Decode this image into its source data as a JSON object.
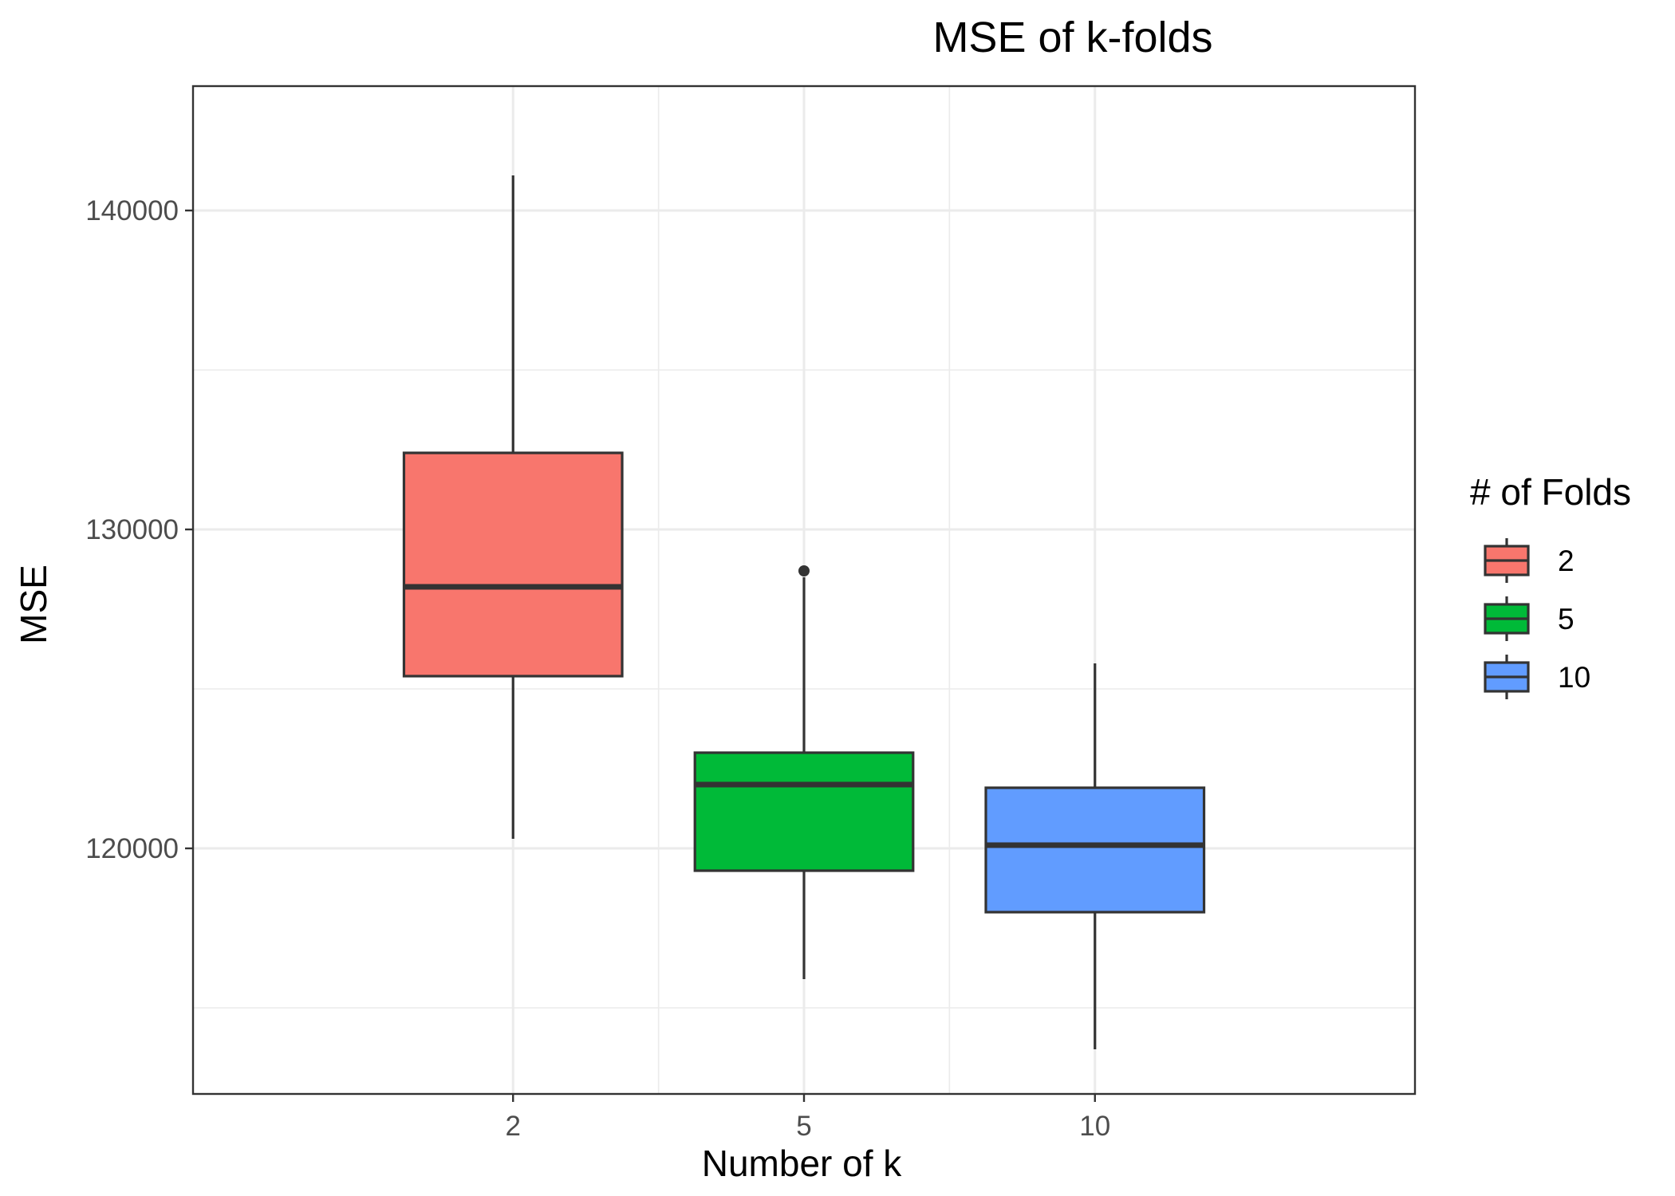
{
  "chart_data": {
    "type": "boxplot",
    "title": "MSE of k-folds",
    "xlabel": "Number of k",
    "ylabel": "MSE",
    "categories": [
      "2",
      "5",
      "10"
    ],
    "ylim": [
      112300,
      143900
    ],
    "y_ticks": [
      120000,
      130000,
      140000
    ],
    "y_tick_labels": [
      "120000",
      "130000",
      "140000"
    ],
    "y_minor_ticks": [
      115000,
      125000,
      135000
    ],
    "grid": true,
    "boxes": [
      {
        "category": "2",
        "whisker_low": 120300,
        "q1": 125400,
        "median": 128200,
        "q3": 132400,
        "whisker_high": 141100,
        "outliers": [],
        "color": "#F8766D"
      },
      {
        "category": "5",
        "whisker_low": 115900,
        "q1": 119300,
        "median": 122000,
        "q3": 123000,
        "whisker_high": 128500,
        "outliers": [
          128700
        ],
        "color": "#00BA38"
      },
      {
        "category": "10",
        "whisker_low": 113700,
        "q1": 118000,
        "median": 120100,
        "q3": 121900,
        "whisker_high": 125800,
        "outliers": [],
        "color": "#619CFF"
      }
    ],
    "legend": {
      "title": "# of Folds",
      "position": "right",
      "entries": [
        {
          "label": "2",
          "color": "#F8766D"
        },
        {
          "label": "5",
          "color": "#00BA38"
        },
        {
          "label": "10",
          "color": "#619CFF"
        }
      ]
    }
  }
}
